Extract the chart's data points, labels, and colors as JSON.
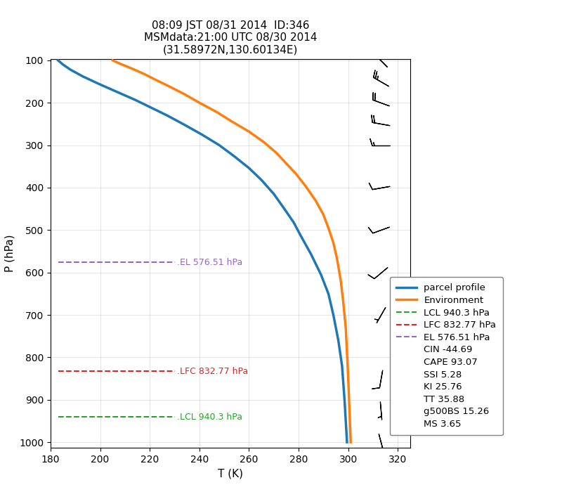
{
  "title": "08:09 JST 08/31 2014  ID:346\nMSMdata:21:00 UTC 08/30 2014\n(31.58972N,130.60134E)",
  "xlabel": "T (K)",
  "ylabel": "P (hPa)",
  "xlim": [
    180,
    325
  ],
  "ylim_top": 97,
  "ylim_bottom": 1013,
  "parcel_T": [
    183,
    185,
    188,
    193,
    200,
    207,
    214,
    220,
    227,
    234,
    241,
    248,
    254,
    260,
    265,
    270,
    274,
    278,
    281,
    285,
    289,
    292,
    294,
    296,
    297.5,
    298.5,
    299.5
  ],
  "parcel_P": [
    100,
    110,
    122,
    138,
    157,
    175,
    193,
    210,
    230,
    252,
    275,
    300,
    326,
    354,
    382,
    415,
    448,
    482,
    515,
    557,
    605,
    650,
    700,
    760,
    820,
    900,
    1000
  ],
  "env_T": [
    205,
    208,
    213,
    218,
    222,
    228,
    234,
    240,
    247,
    253,
    260,
    266,
    271,
    275,
    279,
    283,
    287,
    290,
    292,
    294,
    295.5,
    297,
    298,
    299,
    300,
    301
  ],
  "env_P": [
    100,
    108,
    120,
    133,
    145,
    162,
    180,
    200,
    222,
    244,
    268,
    293,
    318,
    343,
    368,
    398,
    432,
    464,
    495,
    530,
    568,
    620,
    670,
    730,
    850,
    1000
  ],
  "LCL_P": 940.3,
  "LFC_P": 832.77,
  "EL_P": 576.51,
  "LCL_color": "#2ca02c",
  "LFC_color": "#d62728",
  "EL_color": "#9467bd",
  "LCL_label": ".LCL 940.3 hPa",
  "LFC_label": ".LFC 832.77 hPa",
  "EL_label": ".EL 576.51 hPa",
  "dashed_xmin": 183,
  "dashed_xmax": 230,
  "parcel_color": "#1f77b4",
  "env_color": "#ff7f0e",
  "wind_pressures": [
    100,
    150,
    200,
    250,
    300,
    400,
    500,
    600,
    700,
    850,
    925,
    1000
  ],
  "wind_speeds": [
    30,
    25,
    20,
    18,
    15,
    12,
    10,
    8,
    6,
    10,
    5,
    5
  ],
  "wind_dirs": [
    315,
    300,
    290,
    280,
    270,
    260,
    250,
    230,
    210,
    190,
    175,
    165
  ],
  "wind_barb_x": 313,
  "legend_items": [
    {
      "label": "parcel profile",
      "color": "#1f77b4",
      "lw": 2.5,
      "ls": "solid"
    },
    {
      "label": "Environment",
      "color": "#ff7f0e",
      "lw": 2.5,
      "ls": "solid"
    },
    {
      "label": "LCL 940.3 hPa",
      "color": "#2ca02c",
      "lw": 1.5,
      "ls": "dashed"
    },
    {
      "label": "LFC 832.77 hPa",
      "color": "#d62728",
      "lw": 1.5,
      "ls": "dashed"
    },
    {
      "label": "EL 576.51 hPa",
      "color": "#9467bd",
      "lw": 1.5,
      "ls": "dashed"
    }
  ],
  "text_items": [
    "CIN -44.69",
    "CAPE 93.07",
    "SSI 5.28",
    "KI 25.76",
    "TT 35.88",
    "g500BS 15.26",
    "MS 3.65"
  ],
  "yticks": [
    100,
    200,
    300,
    400,
    500,
    600,
    700,
    800,
    900,
    1000
  ],
  "xticks": [
    180,
    200,
    220,
    240,
    260,
    280,
    300,
    320
  ],
  "figsize": [
    8.0,
    7.0
  ],
  "dpi": 100
}
